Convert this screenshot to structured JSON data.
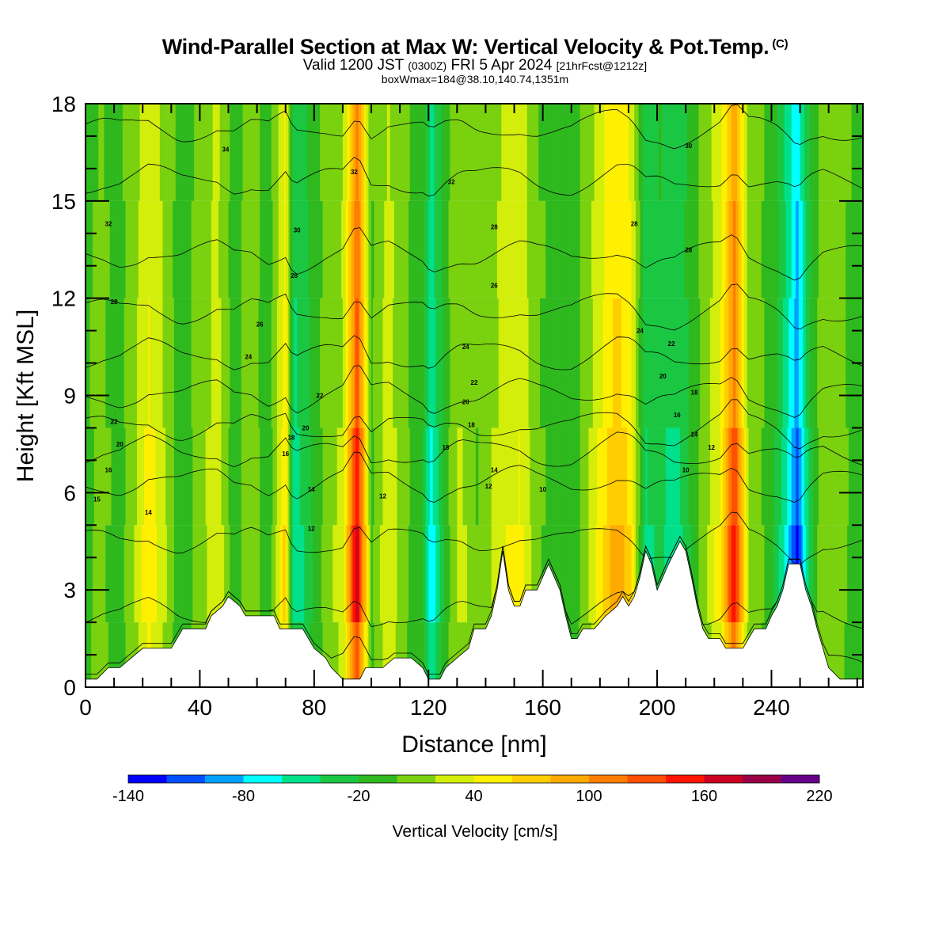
{
  "header": {
    "title": "Wind-Parallel Section at Max W: Vertical Velocity & Pot.Temp.",
    "copyright": "(C)",
    "valid_prefix": "Valid 1200 JST",
    "valid_utc": "(0300Z)",
    "valid_date": "FRI 5 Apr 2024",
    "forecast": "[21hrFcst@1212z]",
    "box_info": "boxWmax=184@38.10,140.74,1351m"
  },
  "chart_data": {
    "type": "heatmap",
    "xlabel": "Distance [nm]",
    "ylabel": "Height [Kft MSL]",
    "xlim": [
      0,
      272
    ],
    "ylim": [
      0,
      18
    ],
    "x_ticks": [
      "0",
      "40",
      "80",
      "120",
      "160",
      "200",
      "240"
    ],
    "y_ticks": [
      "0",
      "3",
      "6",
      "9",
      "12",
      "15",
      "18"
    ],
    "colorbar": {
      "title": "Vertical Velocity [cm/s]",
      "tick_labels": [
        "-140",
        "-80",
        "-20",
        "40",
        "100",
        "160",
        "220"
      ],
      "levels": [
        -140,
        -120,
        -100,
        -80,
        -60,
        -40,
        -20,
        0,
        20,
        40,
        60,
        80,
        100,
        120,
        140,
        160,
        180,
        200,
        220
      ],
      "colors": [
        "#0000ff",
        "#0050ff",
        "#00a0ff",
        "#00ffff",
        "#00e08a",
        "#1bc742",
        "#2eb91e",
        "#7ad10f",
        "#d2ee0a",
        "#ffef00",
        "#ffcd00",
        "#ffaa00",
        "#ff7d00",
        "#ff5000",
        "#ff1400",
        "#cc0020",
        "#9a0045",
        "#660088"
      ]
    },
    "w_columns": [
      {
        "x": 0,
        "w": -5
      },
      {
        "x": 6,
        "w": 5
      },
      {
        "x": 12,
        "w": -10
      },
      {
        "x": 18,
        "w": 25
      },
      {
        "x": 22,
        "w": 60
      },
      {
        "x": 27,
        "w": 30
      },
      {
        "x": 33,
        "w": -15
      },
      {
        "x": 39,
        "w": 5
      },
      {
        "x": 46,
        "w": 40
      },
      {
        "x": 52,
        "w": -15
      },
      {
        "x": 58,
        "w": 20
      },
      {
        "x": 64,
        "w": -20
      },
      {
        "x": 70,
        "w": 70
      },
      {
        "x": 73,
        "w": -60
      },
      {
        "x": 78,
        "w": -30
      },
      {
        "x": 84,
        "w": 10
      },
      {
        "x": 90,
        "w": 30
      },
      {
        "x": 95,
        "w": 184
      },
      {
        "x": 100,
        "w": -5
      },
      {
        "x": 106,
        "w": 40
      },
      {
        "x": 112,
        "w": 5
      },
      {
        "x": 118,
        "w": -20
      },
      {
        "x": 121,
        "w": -80
      },
      {
        "x": 126,
        "w": -10
      },
      {
        "x": 131,
        "w": 30
      },
      {
        "x": 137,
        "w": 0
      },
      {
        "x": 143,
        "w": 25
      },
      {
        "x": 148,
        "w": 45
      },
      {
        "x": 152,
        "w": 50
      },
      {
        "x": 158,
        "w": 5
      },
      {
        "x": 164,
        "w": -10
      },
      {
        "x": 170,
        "w": -20
      },
      {
        "x": 176,
        "w": 20
      },
      {
        "x": 181,
        "w": 60
      },
      {
        "x": 186,
        "w": 95
      },
      {
        "x": 191,
        "w": 60
      },
      {
        "x": 196,
        "w": -50
      },
      {
        "x": 201,
        "w": -35
      },
      {
        "x": 206,
        "w": -60
      },
      {
        "x": 211,
        "w": -25
      },
      {
        "x": 216,
        "w": 10
      },
      {
        "x": 222,
        "w": 50
      },
      {
        "x": 227,
        "w": 160
      },
      {
        "x": 232,
        "w": 20
      },
      {
        "x": 237,
        "w": 0
      },
      {
        "x": 242,
        "w": -30
      },
      {
        "x": 246,
        "w": -80
      },
      {
        "x": 249,
        "w": -130
      },
      {
        "x": 253,
        "w": -40
      },
      {
        "x": 258,
        "w": 20
      },
      {
        "x": 264,
        "w": 5
      },
      {
        "x": 272,
        "w": -10
      }
    ],
    "terrain": [
      {
        "x": 0,
        "h": 0.25
      },
      {
        "x": 4,
        "h": 0.25
      },
      {
        "x": 8,
        "h": 0.6
      },
      {
        "x": 12,
        "h": 0.6
      },
      {
        "x": 16,
        "h": 0.9
      },
      {
        "x": 20,
        "h": 1.2
      },
      {
        "x": 30,
        "h": 1.2
      },
      {
        "x": 32,
        "h": 1.5
      },
      {
        "x": 34,
        "h": 1.8
      },
      {
        "x": 42,
        "h": 1.8
      },
      {
        "x": 44,
        "h": 2.2
      },
      {
        "x": 48,
        "h": 2.5
      },
      {
        "x": 50,
        "h": 2.8
      },
      {
        "x": 54,
        "h": 2.5
      },
      {
        "x": 56,
        "h": 2.2
      },
      {
        "x": 62,
        "h": 2.2
      },
      {
        "x": 66,
        "h": 2.2
      },
      {
        "x": 68,
        "h": 1.8
      },
      {
        "x": 76,
        "h": 1.8
      },
      {
        "x": 78,
        "h": 1.5
      },
      {
        "x": 80,
        "h": 1.2
      },
      {
        "x": 84,
        "h": 0.9
      },
      {
        "x": 86,
        "h": 0.6
      },
      {
        "x": 90,
        "h": 0.25
      },
      {
        "x": 96,
        "h": 0.25
      },
      {
        "x": 98,
        "h": 0.6
      },
      {
        "x": 104,
        "h": 0.6
      },
      {
        "x": 108,
        "h": 0.9
      },
      {
        "x": 114,
        "h": 0.9
      },
      {
        "x": 118,
        "h": 0.6
      },
      {
        "x": 120,
        "h": 0.25
      },
      {
        "x": 124,
        "h": 0.25
      },
      {
        "x": 126,
        "h": 0.6
      },
      {
        "x": 130,
        "h": 0.9
      },
      {
        "x": 134,
        "h": 1.2
      },
      {
        "x": 136,
        "h": 1.8
      },
      {
        "x": 140,
        "h": 1.8
      },
      {
        "x": 142,
        "h": 2.2
      },
      {
        "x": 144,
        "h": 3.0
      },
      {
        "x": 146,
        "h": 4.2
      },
      {
        "x": 148,
        "h": 3.0
      },
      {
        "x": 150,
        "h": 2.5
      },
      {
        "x": 152,
        "h": 2.5
      },
      {
        "x": 154,
        "h": 3.0
      },
      {
        "x": 158,
        "h": 3.0
      },
      {
        "x": 160,
        "h": 3.4
      },
      {
        "x": 162,
        "h": 3.8
      },
      {
        "x": 164,
        "h": 3.4
      },
      {
        "x": 166,
        "h": 3.0
      },
      {
        "x": 168,
        "h": 2.2
      },
      {
        "x": 170,
        "h": 1.5
      },
      {
        "x": 172,
        "h": 1.5
      },
      {
        "x": 174,
        "h": 1.8
      },
      {
        "x": 178,
        "h": 1.8
      },
      {
        "x": 182,
        "h": 2.2
      },
      {
        "x": 186,
        "h": 2.5
      },
      {
        "x": 188,
        "h": 2.8
      },
      {
        "x": 190,
        "h": 2.5
      },
      {
        "x": 192,
        "h": 2.8
      },
      {
        "x": 194,
        "h": 3.4
      },
      {
        "x": 196,
        "h": 4.2
      },
      {
        "x": 198,
        "h": 3.8
      },
      {
        "x": 200,
        "h": 3.0
      },
      {
        "x": 202,
        "h": 3.4
      },
      {
        "x": 204,
        "h": 3.8
      },
      {
        "x": 208,
        "h": 4.5
      },
      {
        "x": 210,
        "h": 4.2
      },
      {
        "x": 212,
        "h": 3.4
      },
      {
        "x": 214,
        "h": 2.5
      },
      {
        "x": 216,
        "h": 1.8
      },
      {
        "x": 218,
        "h": 1.5
      },
      {
        "x": 222,
        "h": 1.5
      },
      {
        "x": 224,
        "h": 1.2
      },
      {
        "x": 230,
        "h": 1.2
      },
      {
        "x": 232,
        "h": 1.5
      },
      {
        "x": 234,
        "h": 1.8
      },
      {
        "x": 238,
        "h": 1.8
      },
      {
        "x": 240,
        "h": 2.2
      },
      {
        "x": 242,
        "h": 2.5
      },
      {
        "x": 244,
        "h": 3.0
      },
      {
        "x": 246,
        "h": 3.8
      },
      {
        "x": 250,
        "h": 3.8
      },
      {
        "x": 252,
        "h": 3.0
      },
      {
        "x": 254,
        "h": 2.5
      },
      {
        "x": 256,
        "h": 1.8
      },
      {
        "x": 258,
        "h": 1.2
      },
      {
        "x": 260,
        "h": 0.6
      },
      {
        "x": 264,
        "h": 0.25
      },
      {
        "x": 272,
        "h": 0.25
      }
    ],
    "isentropes": [
      {
        "theta": 10,
        "h": 0.6
      },
      {
        "theta": 12,
        "h": 2.2
      },
      {
        "theta": 14,
        "h": 4.5
      },
      {
        "theta": 16,
        "h": 6.3
      },
      {
        "theta": 18,
        "h": 7.2
      },
      {
        "theta": 20,
        "h": 8.0
      },
      {
        "theta": 22,
        "h": 9.0
      },
      {
        "theta": 24,
        "h": 10.2
      },
      {
        "theta": 26,
        "h": 11.6
      },
      {
        "theta": 28,
        "h": 13.3
      },
      {
        "theta": 30,
        "h": 15.6
      },
      {
        "theta": 32,
        "h": 17.2
      }
    ],
    "contour_labels": [
      {
        "text": "32",
        "x": 8,
        "h": 14.3
      },
      {
        "text": "34",
        "x": 49,
        "h": 16.6
      },
      {
        "text": "32",
        "x": 94,
        "h": 15.9
      },
      {
        "text": "30",
        "x": 74,
        "h": 14.1
      },
      {
        "text": "32",
        "x": 128,
        "h": 15.6
      },
      {
        "text": "28",
        "x": 143,
        "h": 14.2
      },
      {
        "text": "28",
        "x": 192,
        "h": 14.3
      },
      {
        "text": "30",
        "x": 211,
        "h": 16.7
      },
      {
        "text": "28",
        "x": 211,
        "h": 13.5
      },
      {
        "text": "28",
        "x": 10,
        "h": 11.9
      },
      {
        "text": "28",
        "x": 73,
        "h": 12.7
      },
      {
        "text": "26",
        "x": 61,
        "h": 11.2
      },
      {
        "text": "26",
        "x": 143,
        "h": 12.4
      },
      {
        "text": "24",
        "x": 194,
        "h": 11.0
      },
      {
        "text": "22",
        "x": 205,
        "h": 10.6
      },
      {
        "text": "24",
        "x": 133,
        "h": 10.5
      },
      {
        "text": "24",
        "x": 57,
        "h": 10.2
      },
      {
        "text": "22",
        "x": 136,
        "h": 9.4
      },
      {
        "text": "20",
        "x": 202,
        "h": 9.6
      },
      {
        "text": "18",
        "x": 213,
        "h": 9.1
      },
      {
        "text": "22",
        "x": 82,
        "h": 9.0
      },
      {
        "text": "22",
        "x": 10,
        "h": 8.2
      },
      {
        "text": "20",
        "x": 77,
        "h": 8.0
      },
      {
        "text": "20",
        "x": 133,
        "h": 8.8
      },
      {
        "text": "18",
        "x": 135,
        "h": 8.1
      },
      {
        "text": "16",
        "x": 207,
        "h": 8.4
      },
      {
        "text": "14",
        "x": 213,
        "h": 7.8
      },
      {
        "text": "12",
        "x": 219,
        "h": 7.4
      },
      {
        "text": "20",
        "x": 12,
        "h": 7.5
      },
      {
        "text": "18",
        "x": 72,
        "h": 7.7
      },
      {
        "text": "18",
        "x": 126,
        "h": 7.4
      },
      {
        "text": "16",
        "x": 70,
        "h": 7.2
      },
      {
        "text": "16",
        "x": 8,
        "h": 6.7
      },
      {
        "text": "14",
        "x": 143,
        "h": 6.7
      },
      {
        "text": "10",
        "x": 210,
        "h": 6.7
      },
      {
        "text": "14",
        "x": 79,
        "h": 6.1
      },
      {
        "text": "12",
        "x": 141,
        "h": 6.2
      },
      {
        "text": "10",
        "x": 160,
        "h": 6.1
      },
      {
        "text": "12",
        "x": 104,
        "h": 5.9
      },
      {
        "text": "15",
        "x": 4,
        "h": 5.8
      },
      {
        "text": "14",
        "x": 22,
        "h": 5.4
      },
      {
        "text": "12",
        "x": 79,
        "h": 4.9
      }
    ]
  }
}
